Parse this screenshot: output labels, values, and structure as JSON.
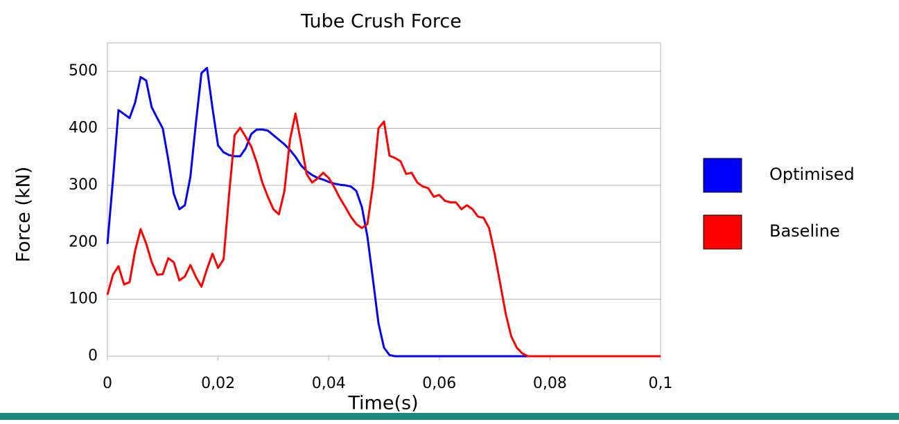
{
  "chart_data": {
    "type": "line",
    "title": "Tube Crush Force",
    "xlabel": "Time(s)",
    "ylabel": "Force (kN)",
    "x": [
      0,
      0.001,
      0.002,
      0.003,
      0.004,
      0.005,
      0.006,
      0.007,
      0.008,
      0.009,
      0.01,
      0.011,
      0.012,
      0.013,
      0.014,
      0.015,
      0.016,
      0.017,
      0.018,
      0.019,
      0.02,
      0.021,
      0.022,
      0.023,
      0.024,
      0.025,
      0.026,
      0.027,
      0.028,
      0.029,
      0.03,
      0.031,
      0.032,
      0.033,
      0.034,
      0.035,
      0.036,
      0.037,
      0.038,
      0.039,
      0.04,
      0.041,
      0.042,
      0.043,
      0.044,
      0.045,
      0.046,
      0.047,
      0.048,
      0.049,
      0.05,
      0.051,
      0.052,
      0.053,
      0.054,
      0.055,
      0.056,
      0.057,
      0.058,
      0.059,
      0.06,
      0.061,
      0.062,
      0.063,
      0.064,
      0.065,
      0.066,
      0.067,
      0.068,
      0.069,
      0.07,
      0.071,
      0.072,
      0.073,
      0.074,
      0.075,
      0.076,
      0.08,
      0.09,
      0.1
    ],
    "series": [
      {
        "name": "Optimised",
        "color": "#0000ff",
        "values": [
          197,
          310,
          432,
          425,
          418,
          445,
          490,
          484,
          437,
          418,
          400,
          345,
          285,
          258,
          265,
          315,
          410,
          497,
          506,
          435,
          370,
          358,
          353,
          351,
          351,
          365,
          390,
          398,
          398,
          396,
          388,
          380,
          372,
          362,
          350,
          335,
          325,
          318,
          313,
          310,
          306,
          303,
          301,
          300,
          298,
          290,
          262,
          210,
          135,
          58,
          15,
          2,
          0,
          0,
          0,
          0,
          0,
          0,
          0,
          0,
          0,
          0,
          0,
          0,
          0,
          0,
          0,
          0,
          0,
          0,
          0,
          0,
          0,
          0,
          0,
          0,
          0,
          0,
          0,
          0
        ]
      },
      {
        "name": "Baseline",
        "color": "#ff0000",
        "values": [
          108,
          143,
          158,
          126,
          130,
          185,
          223,
          198,
          165,
          143,
          144,
          172,
          165,
          133,
          140,
          160,
          139,
          122,
          153,
          180,
          155,
          170,
          285,
          388,
          401,
          385,
          368,
          340,
          305,
          280,
          258,
          249,
          290,
          380,
          426,
          375,
          320,
          305,
          312,
          322,
          313,
          297,
          278,
          262,
          245,
          232,
          225,
          232,
          300,
          400,
          412,
          352,
          348,
          342,
          320,
          322,
          305,
          298,
          295,
          280,
          283,
          273,
          270,
          270,
          258,
          265,
          258,
          245,
          243,
          225,
          180,
          128,
          75,
          35,
          15,
          5,
          0,
          0,
          0,
          0
        ]
      }
    ],
    "xlim": [
      0,
      0.1
    ],
    "xticks": [
      0,
      {
        "value": 0.02,
        "label": "0,02"
      },
      {
        "value": 0.04,
        "label": "0,04"
      },
      {
        "value": 0.06,
        "label": "0,06"
      },
      {
        "value": 0.08,
        "label": "0,08"
      },
      {
        "value": 0.1,
        "label": "0,1"
      }
    ],
    "ylim": [
      0,
      550
    ],
    "yticks": [
      0,
      100,
      200,
      300,
      400,
      500
    ],
    "grid": true,
    "legend": "right"
  }
}
